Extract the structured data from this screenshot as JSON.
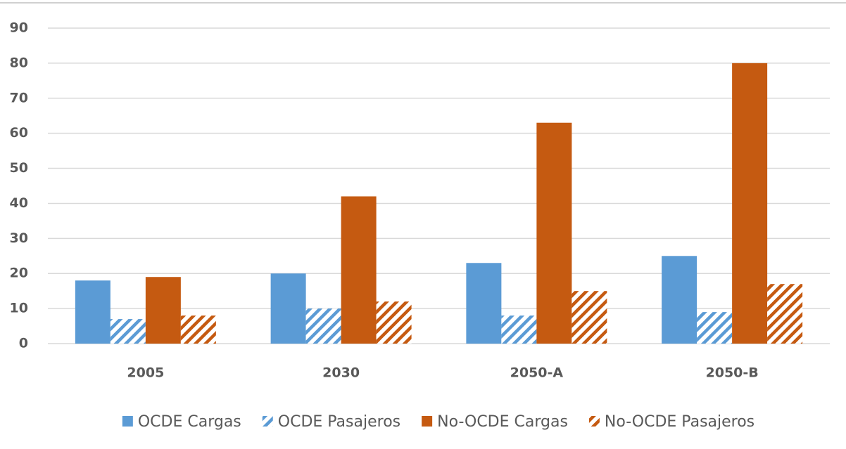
{
  "chart_data": {
    "type": "bar",
    "categories": [
      "2005",
      "2030",
      "2050-A",
      "2050-B"
    ],
    "series": [
      {
        "name": "OCDE Cargas",
        "color": "#5b9bd5",
        "hatched": false,
        "values": [
          18,
          20,
          23,
          25
        ]
      },
      {
        "name": "OCDE Pasajeros",
        "color": "#5b9bd5",
        "hatched": true,
        "values": [
          7,
          10,
          8,
          9
        ]
      },
      {
        "name": "No-OCDE Cargas",
        "color": "#c55a11",
        "hatched": false,
        "values": [
          19,
          42,
          63,
          80
        ]
      },
      {
        "name": "No-OCDE Pasajeros",
        "color": "#c55a11",
        "hatched": true,
        "values": [
          8,
          12,
          15,
          17
        ]
      }
    ],
    "ylim": [
      0,
      90
    ],
    "yticks": [
      0,
      10,
      20,
      30,
      40,
      50,
      60,
      70,
      80,
      90
    ],
    "grid": true,
    "legend": "bottom"
  }
}
